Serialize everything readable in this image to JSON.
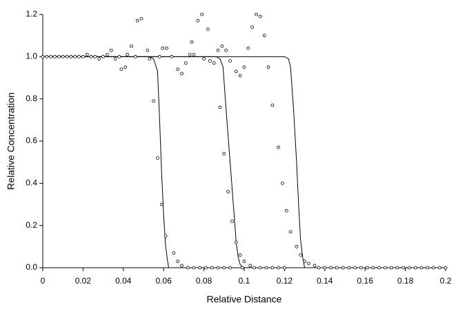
{
  "chart_data": {
    "type": "scatter",
    "x_label": "Relative Distance",
    "y_label": "Relative Concentration",
    "xlim": [
      0,
      0.2
    ],
    "xticks": [
      0,
      0.02,
      0.04,
      0.06,
      0.08,
      0.1,
      0.12,
      0.14,
      0.16,
      0.18,
      0.2
    ],
    "ylim": [
      0,
      1.2
    ],
    "yticks": [
      {
        "value": 0,
        "label": "0.0"
      },
      0.2,
      0.4,
      0.6,
      0.8,
      {
        "value": 1,
        "label": "1.0"
      },
      1.2
    ],
    "grid": false,
    "series": [
      {
        "style": "line",
        "color": "#000000",
        "x": [
          0,
          0.053,
          0.055,
          0.057,
          0.058,
          0.059,
          0.06,
          0.061,
          0.062,
          0.0625,
          0.2
        ],
        "values": [
          1,
          1,
          0.99,
          0.93,
          0.7,
          0.45,
          0.25,
          0.1,
          0.03,
          0,
          0
        ]
      },
      {
        "style": "line",
        "color": "#000000",
        "x": [
          0,
          0.086,
          0.088,
          0.0895,
          0.091,
          0.093,
          0.095,
          0.096,
          0.097,
          0.098,
          0.0995,
          0.2
        ],
        "values": [
          1,
          1,
          0.99,
          0.95,
          0.75,
          0.5,
          0.25,
          0.12,
          0.05,
          0.015,
          0,
          0
        ]
      },
      {
        "style": "line",
        "color": "#000000",
        "x": [
          0,
          0.12,
          0.122,
          0.123,
          0.1245,
          0.126,
          0.127,
          0.128,
          0.129,
          0.13,
          0.2
        ],
        "values": [
          1,
          1,
          0.99,
          0.95,
          0.75,
          0.5,
          0.3,
          0.13,
          0.05,
          0,
          0
        ]
      },
      {
        "style": "points",
        "color": "#000000",
        "x": [
          0,
          0.002,
          0.004,
          0.006,
          0.008,
          0.01,
          0.012,
          0.014,
          0.016,
          0.018,
          0.02,
          0.022,
          0.024,
          0.026,
          0.028,
          0.03,
          0.032,
          0.036,
          0.038,
          0.034,
          0.039,
          0.041,
          0.042,
          0.044,
          0.046,
          0.047,
          0.049,
          0.052,
          0.053,
          0.055,
          0.057,
          0.059,
          0.061,
          0.065,
          0.067,
          0.069,
          0.058,
          0.0595,
          0.0615,
          0.064,
          0.067,
          0.069,
          0.071,
          0.073,
          0.074,
          0.075,
          0.077,
          0.079,
          0.08,
          0.082,
          0.083,
          0.085,
          0.087,
          0.089,
          0.091,
          0.093,
          0.088,
          0.09,
          0.092,
          0.094,
          0.096,
          0.098,
          0.1,
          0.103,
          0.096,
          0.098,
          0.1,
          0.102,
          0.104,
          0.106,
          0.108,
          0.11,
          0.112,
          0.114,
          0.117,
          0.119,
          0.121,
          0.123,
          0.126,
          0.128,
          0.13,
          0.132,
          0.135,
          0.072,
          0.075,
          0.078,
          0.081,
          0.084,
          0.087,
          0.09,
          0.093,
          0.099,
          0.105,
          0.108,
          0.111,
          0.114,
          0.117,
          0.12,
          0.137,
          0.14,
          0.143,
          0.146,
          0.149,
          0.152,
          0.155,
          0.158,
          0.161,
          0.164,
          0.167,
          0.17,
          0.173,
          0.176,
          0.179,
          0.182,
          0.185,
          0.188,
          0.191,
          0.194,
          0.197,
          0.2
        ],
        "values": [
          1,
          1,
          1,
          1,
          1,
          1,
          1,
          1,
          1,
          1,
          1,
          1.01,
          1,
          1,
          0.99,
          1,
          1.01,
          0.99,
          1,
          1.03,
          0.94,
          0.95,
          1.01,
          1.05,
          1,
          1.17,
          1.18,
          1.03,
          0.99,
          0.79,
          0.52,
          0.3,
          0.15,
          0.07,
          0.03,
          0.01,
          1,
          1.04,
          1.04,
          1,
          0.94,
          0.92,
          0.97,
          1.01,
          1.07,
          1.01,
          1.17,
          1.2,
          0.99,
          1.13,
          0.98,
          0.97,
          1.03,
          1.05,
          1.03,
          0.98,
          0.76,
          0.54,
          0.36,
          0.22,
          0.12,
          0.06,
          0.03,
          0.01,
          0.93,
          0.91,
          0.95,
          1.04,
          1.14,
          1.2,
          1.19,
          1.1,
          0.95,
          0.77,
          0.57,
          0.4,
          0.27,
          0.17,
          0.1,
          0.06,
          0.03,
          0.02,
          0.01,
          0,
          0,
          0,
          0,
          0,
          0,
          0,
          0,
          0,
          0,
          0,
          0,
          0,
          0,
          0,
          0,
          0,
          0,
          0,
          0,
          0,
          0,
          0,
          0,
          0,
          0,
          0,
          0,
          0,
          0,
          0,
          0,
          0,
          0,
          0,
          0,
          0
        ]
      }
    ]
  }
}
